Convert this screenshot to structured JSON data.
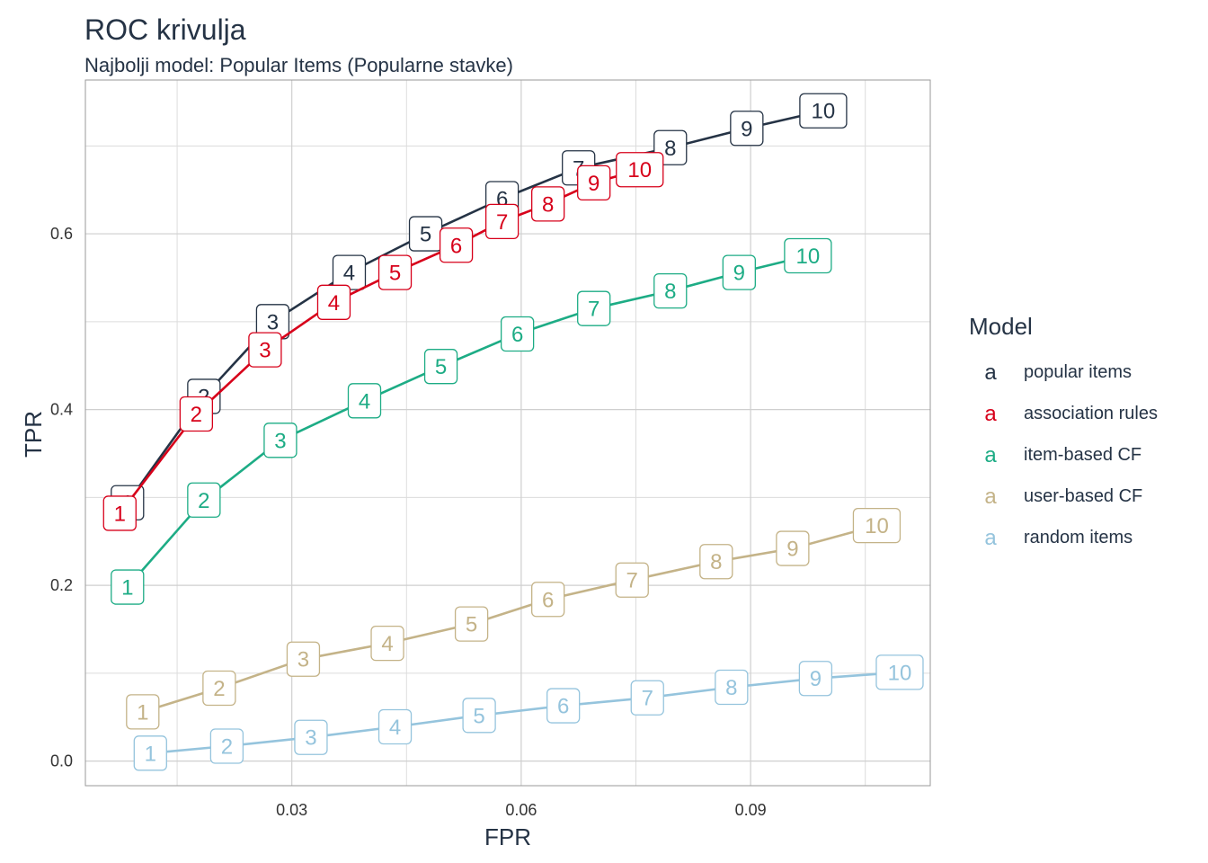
{
  "chart_data": {
    "type": "line",
    "title": "ROC krivulja",
    "subtitle": "Najbolji model: Popular Items (Popularne stavke)",
    "xlabel": "FPR",
    "ylabel": "TPR",
    "xlim": [
      0.003,
      0.1135
    ],
    "ylim": [
      -0.028,
      0.775
    ],
    "x_ticks": [
      0.03,
      0.06,
      0.09
    ],
    "x_tick_labels": [
      "0.03",
      "0.06",
      "0.09"
    ],
    "y_ticks": [
      0.0,
      0.2,
      0.4,
      0.6
    ],
    "y_tick_labels": [
      "0.0",
      "0.2",
      "0.4",
      "0.6"
    ],
    "grid": true,
    "legend": {
      "title": "Model",
      "position": "right",
      "key_glyph": "a"
    },
    "point_labels": [
      "1",
      "2",
      "3",
      "4",
      "5",
      "6",
      "7",
      "8",
      "9",
      "10"
    ],
    "series": [
      {
        "name": "popular items",
        "color": "#253345",
        "x": [
          0.0085,
          0.0185,
          0.0275,
          0.0375,
          0.0475,
          0.0575,
          0.0675,
          0.0795,
          0.0895,
          0.0995
        ],
        "y": [
          0.294,
          0.415,
          0.5,
          0.556,
          0.6,
          0.64,
          0.675,
          0.698,
          0.72,
          0.74
        ]
      },
      {
        "name": "association rules",
        "color": "#d7001a",
        "x": [
          0.0075,
          0.0175,
          0.0265,
          0.0355,
          0.0435,
          0.0515,
          0.0575,
          0.0635,
          0.0695,
          0.0755
        ],
        "y": [
          0.282,
          0.395,
          0.468,
          0.522,
          0.556,
          0.587,
          0.614,
          0.634,
          0.658,
          0.673
        ]
      },
      {
        "name": "item-based CF",
        "color": "#1dac85",
        "x": [
          0.0085,
          0.0185,
          0.0285,
          0.0395,
          0.0495,
          0.0595,
          0.0695,
          0.0795,
          0.0885,
          0.0975
        ],
        "y": [
          0.198,
          0.297,
          0.365,
          0.41,
          0.449,
          0.486,
          0.515,
          0.535,
          0.556,
          0.575
        ]
      },
      {
        "name": "user-based CF",
        "color": "#c4b388",
        "x": [
          0.0105,
          0.0205,
          0.0315,
          0.0425,
          0.0535,
          0.0635,
          0.0745,
          0.0855,
          0.0955,
          0.1065
        ],
        "y": [
          0.056,
          0.083,
          0.116,
          0.134,
          0.156,
          0.184,
          0.206,
          0.227,
          0.242,
          0.268
        ]
      },
      {
        "name": "random items",
        "color": "#95c4dd",
        "x": [
          0.0115,
          0.0215,
          0.0325,
          0.0435,
          0.0545,
          0.0655,
          0.0765,
          0.0875,
          0.0985,
          0.1095
        ],
        "y": [
          0.009,
          0.017,
          0.027,
          0.039,
          0.052,
          0.063,
          0.072,
          0.084,
          0.094,
          0.101
        ]
      }
    ]
  }
}
